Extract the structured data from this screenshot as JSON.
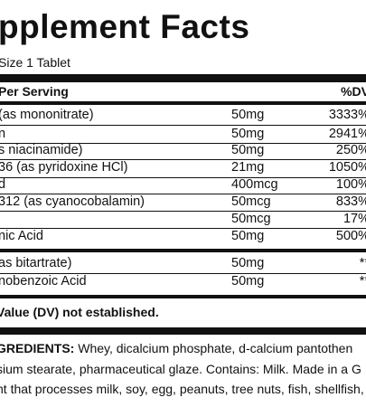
{
  "title": "pplement Facts",
  "serving_size": "Size 1 Tablet",
  "header": {
    "per_serving": "Per Serving",
    "dv": "%DV"
  },
  "rows": [
    {
      "name": "(as mononitrate)",
      "amount": "50mg",
      "dv": "3333%"
    },
    {
      "name": "n",
      "amount": "50mg",
      "dv": "2941%"
    },
    {
      "name": "s niacinamide)",
      "amount": "50mg",
      "dv": "250%"
    },
    {
      "name": "36 (as pyridoxine HCl)",
      "amount": "21mg",
      "dv": "1050%"
    },
    {
      "name": "d",
      "amount": "400mcg",
      "dv": "100%"
    },
    {
      "name": "312 (as cyanocobalamin)",
      "amount": "50mcg",
      "dv": "833%"
    },
    {
      "name": "",
      "amount": "50mcg",
      "dv": "17%"
    },
    {
      "name": "nic Acid",
      "amount": "50mg",
      "dv": "500%"
    },
    {
      "name": "as bitartrate)",
      "amount": "50mg",
      "dv": "**"
    },
    {
      "name": "nobenzoic Acid",
      "amount": "50mg",
      "dv": "**"
    }
  ],
  "footnote": "Value (DV) not established.",
  "ingredients": {
    "label": "GREDIENTS:",
    "line1": " Whey, dicalcium phosphate, d-calcium pantothen",
    "line2": "sium stearate, pharmaceutical glaze. Contains: Milk. Made in a G",
    "line3": "nt that processes milk, soy, egg, peanuts, tree nuts, fish, shellfish,"
  }
}
